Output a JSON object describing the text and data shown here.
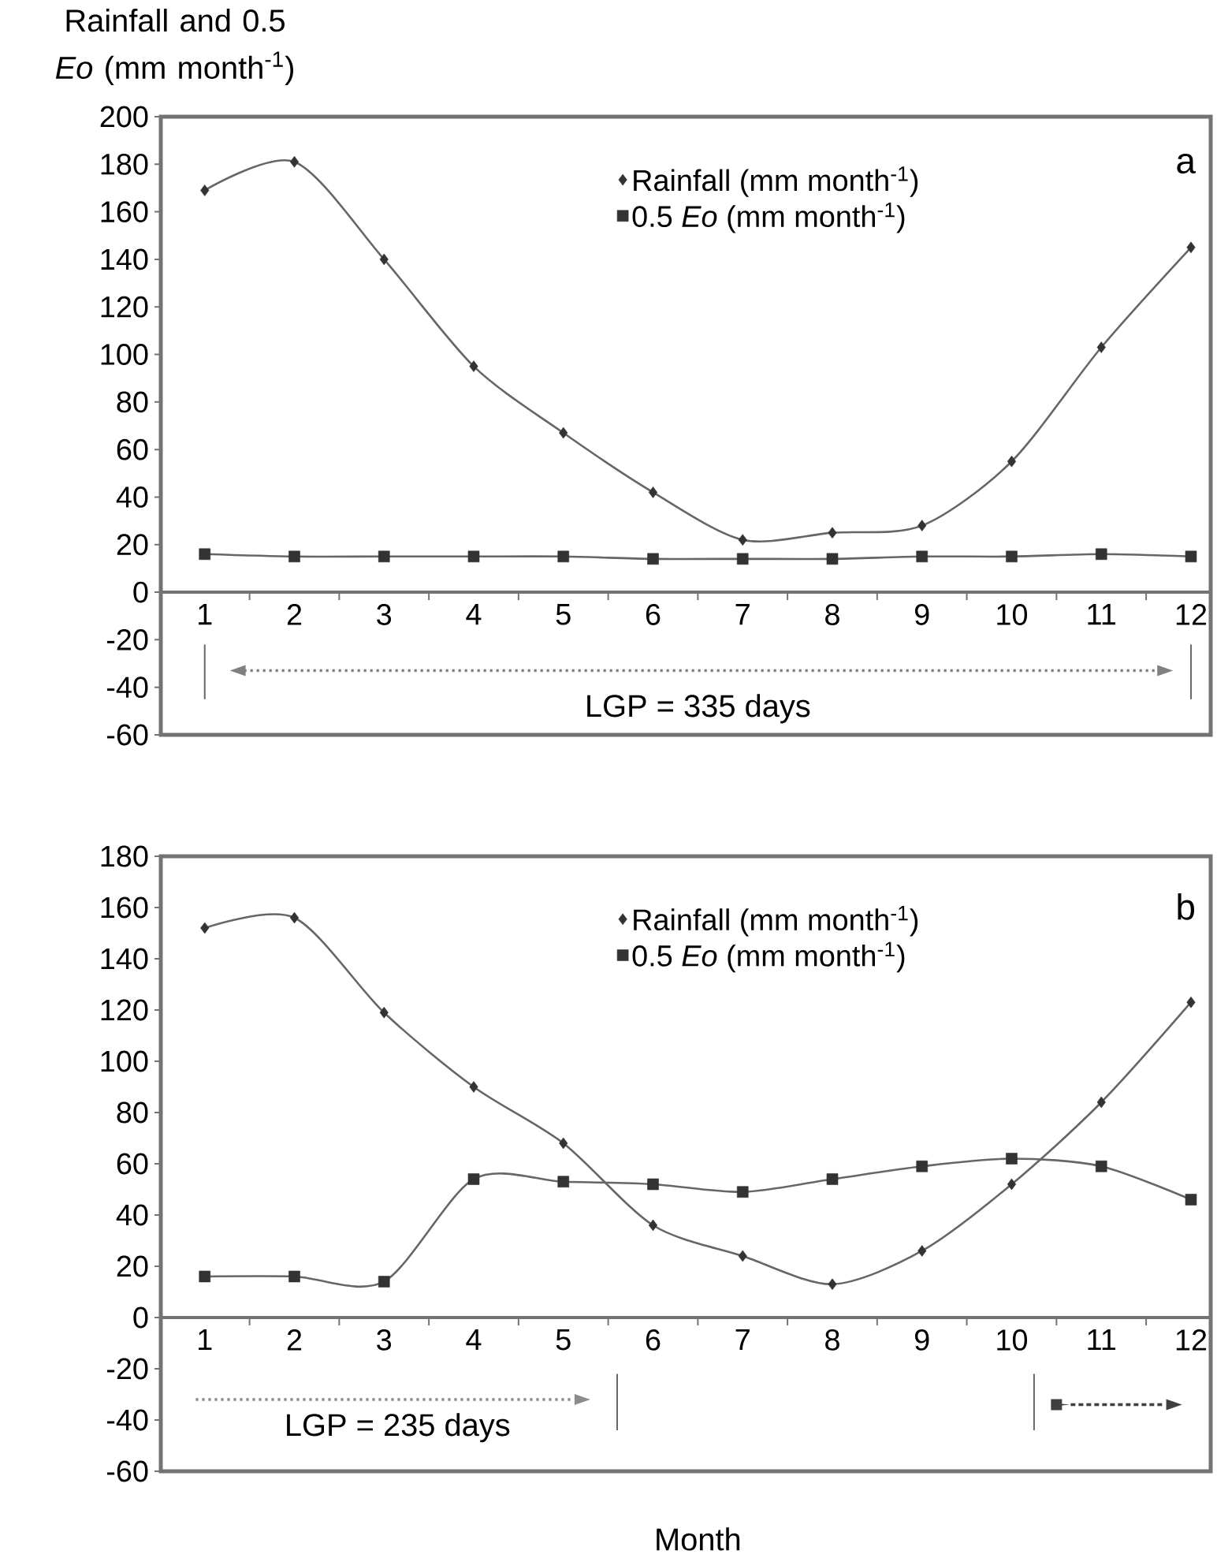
{
  "chart_data": [
    {
      "type": "line",
      "ylabel": "Rainfall and 0.5 *Eo* (mm month$^{-1}$)",
      "categories": [
        "1",
        "2",
        "3",
        "4",
        "5",
        "6",
        "7",
        "8",
        "9",
        "10",
        "11",
        "12"
      ],
      "series": [
        {
          "name": "Rainfall (mm month$^{-1}$)",
          "color": "#333333",
          "marker": "diamond",
          "values": [
            169,
            181,
            140,
            95,
            67,
            42,
            22,
            25,
            28,
            55,
            103,
            145
          ]
        },
        {
          "name": "0.5 *Eo* (mm month$^{-1}$)",
          "color": "#333333",
          "marker": "square",
          "values": [
            16,
            15,
            15,
            15,
            15,
            14,
            14,
            14,
            15,
            15,
            16,
            15
          ]
        }
      ],
      "ylim": [
        -60,
        200
      ],
      "yticks": [
        -60,
        -40,
        -20,
        0,
        20,
        40,
        60,
        80,
        100,
        120,
        140,
        160,
        180,
        200
      ],
      "legend": "top",
      "annotations": [
        "a",
        "LGP = 335 days"
      ]
    },
    {
      "type": "line",
      "xlabel": "Month",
      "categories": [
        "1",
        "2",
        "3",
        "4",
        "5",
        "6",
        "7",
        "8",
        "9",
        "10",
        "11",
        "12"
      ],
      "series": [
        {
          "name": "Rainfall (mm month$^{-1}$)",
          "color": "#333333",
          "marker": "diamond",
          "values": [
            152,
            156,
            119,
            90,
            68,
            36,
            24,
            13,
            26,
            52,
            84,
            123
          ]
        },
        {
          "name": "0.5 *Eo* (mm month$^{-1}$)",
          "color": "#333333",
          "marker": "square",
          "values": [
            16,
            16,
            14,
            54,
            53,
            52,
            49,
            54,
            59,
            62,
            59,
            46
          ]
        }
      ],
      "ylim": [
        -60,
        180
      ],
      "yticks": [
        -60,
        -40,
        -20,
        0,
        20,
        40,
        60,
        80,
        100,
        120,
        140,
        160,
        180
      ],
      "legend": "top",
      "annotations": [
        "b",
        "LGP = 235 days"
      ]
    }
  ]
}
